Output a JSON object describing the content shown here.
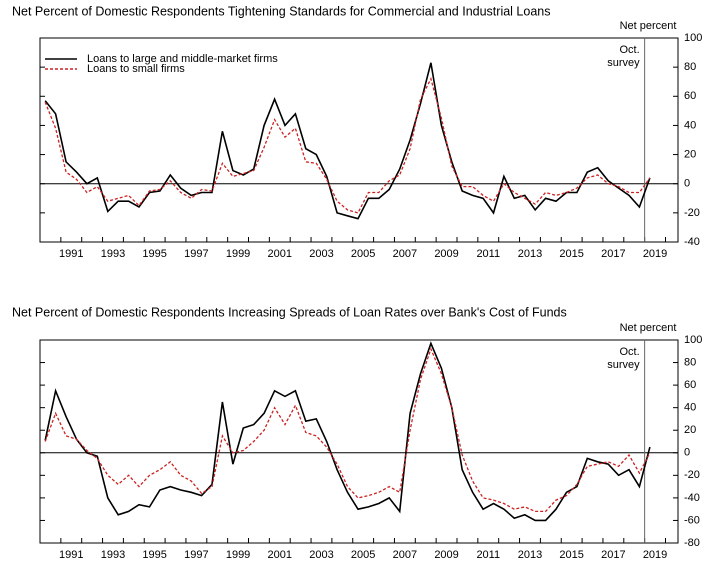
{
  "chart_data": [
    {
      "type": "line",
      "title": "Net Percent of Domestic Respondents Tightening Standards for Commercial and Industrial Loans",
      "y_axis_label": "Net percent",
      "survey_label": [
        "Oct.",
        "survey"
      ],
      "survey_x": 2019,
      "legend": "upper left",
      "xlim": [
        1990,
        2020.6
      ],
      "xticks": [
        1991,
        1993,
        1995,
        1997,
        1999,
        2001,
        2003,
        2005,
        2007,
        2009,
        2011,
        2013,
        2015,
        2017,
        2019
      ],
      "ylim": [
        -40,
        100
      ],
      "yticks": [
        -40,
        -20,
        0,
        20,
        40,
        60,
        80,
        100
      ],
      "x": [
        1990.25,
        1990.75,
        1991.25,
        1991.75,
        1992.25,
        1992.75,
        1993.25,
        1993.75,
        1994.25,
        1994.75,
        1995.25,
        1995.75,
        1996.25,
        1996.75,
        1997.25,
        1997.75,
        1998.25,
        1998.75,
        1999.25,
        1999.75,
        2000.25,
        2000.75,
        2001.25,
        2001.75,
        2002.25,
        2002.75,
        2003.25,
        2003.75,
        2004.25,
        2004.75,
        2005.25,
        2005.75,
        2006.25,
        2006.75,
        2007.25,
        2007.75,
        2008.25,
        2008.75,
        2009.25,
        2009.75,
        2010.25,
        2010.75,
        2011.25,
        2011.75,
        2012.25,
        2012.75,
        2013.25,
        2013.75,
        2014.25,
        2014.75,
        2015.25,
        2015.75,
        2016.25,
        2016.75,
        2017.25,
        2017.75,
        2018.25,
        2018.75,
        2019.25
      ],
      "series": [
        {
          "name": "Loans to large and middle-market firms",
          "color": "#000000",
          "line_style": "solid",
          "values": [
            57,
            48,
            15,
            8,
            0,
            4,
            -19,
            -12,
            -12,
            -16,
            -6,
            -5,
            6,
            -3,
            -8,
            -6,
            -6,
            36,
            9,
            6,
            10,
            40,
            58,
            40,
            48,
            24,
            20,
            5,
            -20,
            -22,
            -24,
            -10,
            -10,
            -4,
            10,
            30,
            55,
            83,
            40,
            15,
            -5,
            -8,
            -10,
            -20,
            5,
            -10,
            -8,
            -18,
            -10,
            -12,
            -6,
            -6,
            8,
            11,
            2,
            -3,
            -8,
            -16,
            4
          ]
        },
        {
          "name": "Loans to small firms",
          "color": "#cc2222",
          "line_style": "dashed",
          "values": [
            56,
            38,
            8,
            3,
            -6,
            -2,
            -12,
            -10,
            -8,
            -15,
            -5,
            -4,
            2,
            -6,
            -10,
            -4,
            -5,
            14,
            5,
            7,
            9,
            25,
            44,
            32,
            38,
            15,
            14,
            3,
            -12,
            -18,
            -20,
            -6,
            -6,
            2,
            6,
            24,
            58,
            72,
            45,
            12,
            -2,
            -2,
            -8,
            -12,
            0,
            -6,
            -10,
            -14,
            -6,
            -8,
            -6,
            -3,
            4,
            6,
            0,
            -2,
            -6,
            -6,
            4
          ]
        }
      ]
    },
    {
      "type": "line",
      "title": "Net Percent of Domestic Respondents Increasing Spreads of Loan Rates over Bank's Cost of Funds",
      "y_axis_label": "Net percent",
      "survey_label": [
        "Oct.",
        "survey"
      ],
      "survey_x": 2019,
      "xlim": [
        1990,
        2020.6
      ],
      "xticks": [
        1991,
        1993,
        1995,
        1997,
        1999,
        2001,
        2003,
        2005,
        2007,
        2009,
        2011,
        2013,
        2015,
        2017,
        2019
      ],
      "ylim": [
        -80,
        100
      ],
      "yticks": [
        -80,
        -60,
        -40,
        -20,
        0,
        20,
        40,
        60,
        80,
        100
      ],
      "x": [
        1990.25,
        1990.75,
        1991.25,
        1991.75,
        1992.25,
        1992.75,
        1993.25,
        1993.75,
        1994.25,
        1994.75,
        1995.25,
        1995.75,
        1996.25,
        1996.75,
        1997.25,
        1997.75,
        1998.25,
        1998.75,
        1999.25,
        1999.75,
        2000.25,
        2000.75,
        2001.25,
        2001.75,
        2002.25,
        2002.75,
        2003.25,
        2003.75,
        2004.25,
        2004.75,
        2005.25,
        2005.75,
        2006.25,
        2006.75,
        2007.25,
        2007.75,
        2008.25,
        2008.75,
        2009.25,
        2009.75,
        2010.25,
        2010.75,
        2011.25,
        2011.75,
        2012.25,
        2012.75,
        2013.25,
        2013.75,
        2014.25,
        2014.75,
        2015.25,
        2015.75,
        2016.25,
        2016.75,
        2017.25,
        2017.75,
        2018.25,
        2018.75,
        2019.25
      ],
      "series": [
        {
          "name": "Loans to large and middle-market firms",
          "color": "#000000",
          "line_style": "solid",
          "values": [
            11,
            55,
            32,
            12,
            0,
            -3,
            -40,
            -55,
            -52,
            -46,
            -48,
            -33,
            -30,
            -33,
            -35,
            -38,
            -28,
            45,
            -10,
            22,
            25,
            35,
            55,
            50,
            55,
            28,
            30,
            10,
            -15,
            -35,
            -50,
            -48,
            -45,
            -40,
            -52,
            35,
            70,
            97,
            75,
            40,
            -15,
            -35,
            -50,
            -45,
            -50,
            -58,
            -55,
            -60,
            -60,
            -50,
            -35,
            -30,
            -5,
            -8,
            -10,
            -20,
            -15,
            -30,
            5
          ]
        },
        {
          "name": "Loans to small firms",
          "color": "#cc2222",
          "line_style": "dashed",
          "values": [
            10,
            35,
            15,
            12,
            2,
            -5,
            -20,
            -28,
            -20,
            -30,
            -20,
            -15,
            -8,
            -20,
            -25,
            -36,
            -30,
            15,
            0,
            2,
            10,
            20,
            40,
            25,
            42,
            18,
            15,
            5,
            -10,
            -30,
            -40,
            -38,
            -35,
            -30,
            -35,
            20,
            65,
            92,
            70,
            40,
            -2,
            -25,
            -40,
            -42,
            -45,
            -50,
            -48,
            -52,
            -52,
            -42,
            -38,
            -28,
            -12,
            -10,
            -8,
            -12,
            -2,
            -18,
            0
          ]
        }
      ]
    }
  ]
}
